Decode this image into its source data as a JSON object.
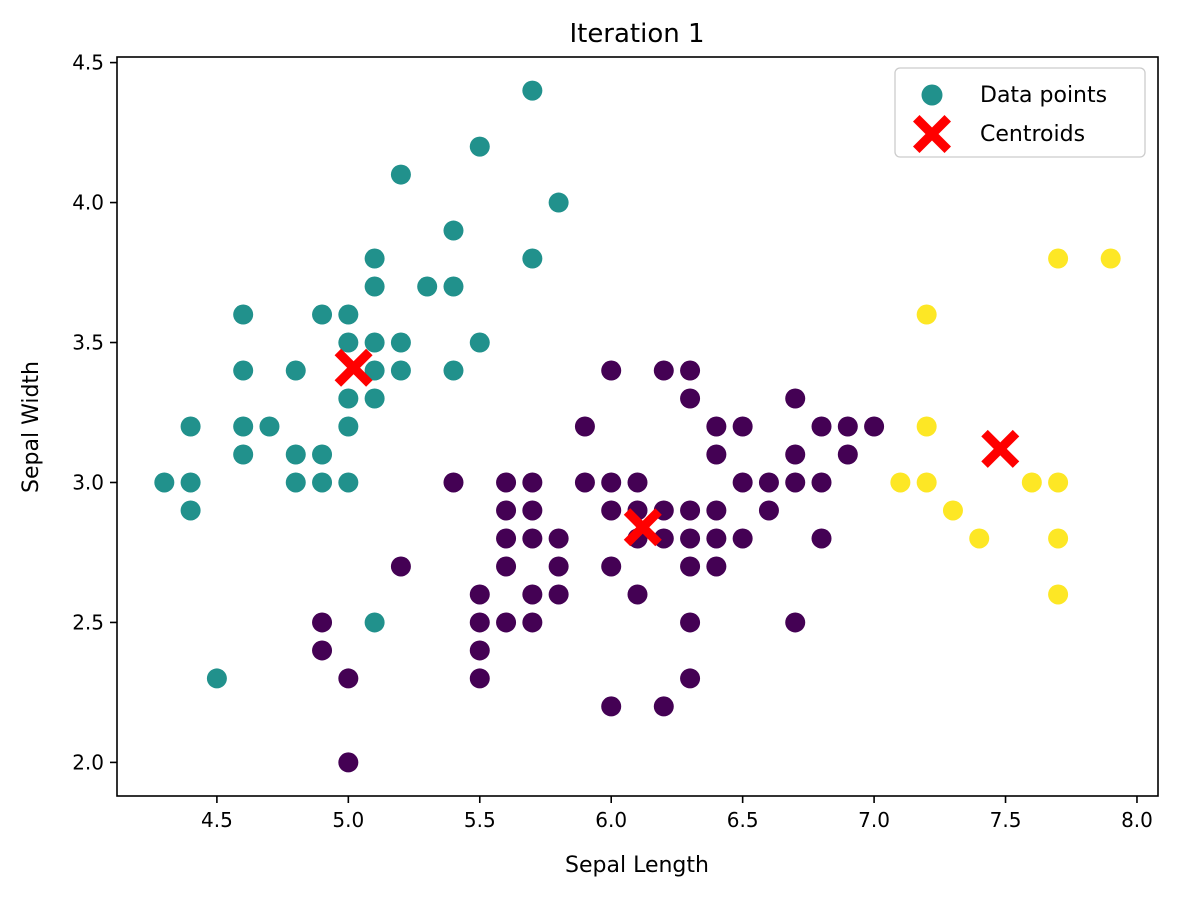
{
  "chart_data": {
    "type": "scatter",
    "title": "Iteration 1",
    "xlabel": "Sepal Length",
    "ylabel": "Sepal Width",
    "xlim": [
      4.12,
      8.08
    ],
    "ylim": [
      1.88,
      4.52
    ],
    "xticks": [
      "4.5",
      "5.0",
      "5.5",
      "6.0",
      "6.5",
      "7.0",
      "7.5",
      "8.0"
    ],
    "yticks": [
      "2.0",
      "2.5",
      "3.0",
      "3.5",
      "4.0",
      "4.5"
    ],
    "grid": false,
    "legend_position": "top-right",
    "cluster_colors": [
      "#440154",
      "#21918c",
      "#fde725"
    ],
    "series": [
      {
        "name": "Data points",
        "marker": "circle",
        "legend_color": "#21918c",
        "points": [
          [
            5.7,
            4.4,
            1
          ],
          [
            5.5,
            4.2,
            1
          ],
          [
            5.2,
            4.1,
            1
          ],
          [
            5.8,
            4.0,
            1
          ],
          [
            5.4,
            3.9,
            1
          ],
          [
            5.1,
            3.8,
            1
          ],
          [
            5.7,
            3.8,
            1
          ],
          [
            5.1,
            3.7,
            1
          ],
          [
            5.3,
            3.7,
            1
          ],
          [
            5.4,
            3.7,
            1
          ],
          [
            4.6,
            3.6,
            1
          ],
          [
            4.9,
            3.6,
            1
          ],
          [
            5.0,
            3.6,
            1
          ],
          [
            5.0,
            3.5,
            1
          ],
          [
            5.1,
            3.5,
            1
          ],
          [
            5.2,
            3.5,
            1
          ],
          [
            5.5,
            3.5,
            1
          ],
          [
            4.6,
            3.4,
            1
          ],
          [
            4.8,
            3.4,
            1
          ],
          [
            5.1,
            3.4,
            1
          ],
          [
            5.2,
            3.4,
            1
          ],
          [
            5.4,
            3.4,
            1
          ],
          [
            5.0,
            3.3,
            1
          ],
          [
            5.1,
            3.3,
            1
          ],
          [
            4.4,
            3.2,
            1
          ],
          [
            4.6,
            3.2,
            1
          ],
          [
            4.7,
            3.2,
            1
          ],
          [
            5.0,
            3.2,
            1
          ],
          [
            4.6,
            3.1,
            1
          ],
          [
            4.8,
            3.1,
            1
          ],
          [
            4.9,
            3.1,
            1
          ],
          [
            4.3,
            3.0,
            1
          ],
          [
            4.4,
            3.0,
            1
          ],
          [
            4.8,
            3.0,
            1
          ],
          [
            4.9,
            3.0,
            1
          ],
          [
            5.0,
            3.0,
            1
          ],
          [
            4.4,
            2.9,
            1
          ],
          [
            5.1,
            2.5,
            1
          ],
          [
            4.5,
            2.3,
            1
          ],
          [
            6.0,
            3.4,
            0
          ],
          [
            6.2,
            3.4,
            0
          ],
          [
            6.3,
            3.4,
            0
          ],
          [
            6.3,
            3.3,
            0
          ],
          [
            6.7,
            3.3,
            0
          ],
          [
            5.9,
            3.2,
            0
          ],
          [
            6.4,
            3.2,
            0
          ],
          [
            6.5,
            3.2,
            0
          ],
          [
            6.8,
            3.2,
            0
          ],
          [
            6.9,
            3.2,
            0
          ],
          [
            7.0,
            3.2,
            0
          ],
          [
            6.4,
            3.1,
            0
          ],
          [
            6.7,
            3.1,
            0
          ],
          [
            6.9,
            3.1,
            0
          ],
          [
            5.4,
            3.0,
            0
          ],
          [
            5.6,
            3.0,
            0
          ],
          [
            5.7,
            3.0,
            0
          ],
          [
            5.9,
            3.0,
            0
          ],
          [
            6.0,
            3.0,
            0
          ],
          [
            6.1,
            3.0,
            0
          ],
          [
            6.5,
            3.0,
            0
          ],
          [
            6.6,
            3.0,
            0
          ],
          [
            6.7,
            3.0,
            0
          ],
          [
            6.8,
            3.0,
            0
          ],
          [
            5.6,
            2.9,
            0
          ],
          [
            5.7,
            2.9,
            0
          ],
          [
            6.0,
            2.9,
            0
          ],
          [
            6.1,
            2.9,
            0
          ],
          [
            6.2,
            2.9,
            0
          ],
          [
            6.3,
            2.9,
            0
          ],
          [
            6.4,
            2.9,
            0
          ],
          [
            6.6,
            2.9,
            0
          ],
          [
            5.6,
            2.8,
            0
          ],
          [
            5.7,
            2.8,
            0
          ],
          [
            5.8,
            2.8,
            0
          ],
          [
            6.1,
            2.8,
            0
          ],
          [
            6.2,
            2.8,
            0
          ],
          [
            6.3,
            2.8,
            0
          ],
          [
            6.4,
            2.8,
            0
          ],
          [
            6.5,
            2.8,
            0
          ],
          [
            6.8,
            2.8,
            0
          ],
          [
            5.2,
            2.7,
            0
          ],
          [
            5.6,
            2.7,
            0
          ],
          [
            5.8,
            2.7,
            0
          ],
          [
            6.0,
            2.7,
            0
          ],
          [
            6.3,
            2.7,
            0
          ],
          [
            6.4,
            2.7,
            0
          ],
          [
            5.5,
            2.6,
            0
          ],
          [
            5.7,
            2.6,
            0
          ],
          [
            5.8,
            2.6,
            0
          ],
          [
            6.1,
            2.6,
            0
          ],
          [
            4.9,
            2.5,
            0
          ],
          [
            5.5,
            2.5,
            0
          ],
          [
            5.6,
            2.5,
            0
          ],
          [
            5.7,
            2.5,
            0
          ],
          [
            6.3,
            2.5,
            0
          ],
          [
            6.7,
            2.5,
            0
          ],
          [
            4.9,
            2.4,
            0
          ],
          [
            5.5,
            2.4,
            0
          ],
          [
            5.0,
            2.3,
            0
          ],
          [
            5.5,
            2.3,
            0
          ],
          [
            6.3,
            2.3,
            0
          ],
          [
            6.0,
            2.2,
            0
          ],
          [
            6.2,
            2.2,
            0
          ],
          [
            5.0,
            2.0,
            0
          ],
          [
            7.7,
            3.8,
            2
          ],
          [
            7.9,
            3.8,
            2
          ],
          [
            7.2,
            3.6,
            2
          ],
          [
            7.2,
            3.2,
            2
          ],
          [
            7.1,
            3.0,
            2
          ],
          [
            7.2,
            3.0,
            2
          ],
          [
            7.6,
            3.0,
            2
          ],
          [
            7.7,
            3.0,
            2
          ],
          [
            7.3,
            2.9,
            2
          ],
          [
            7.4,
            2.8,
            2
          ],
          [
            7.7,
            2.8,
            2
          ],
          [
            7.7,
            2.6,
            2
          ]
        ]
      },
      {
        "name": "Centroids",
        "marker": "x",
        "color": "#ff0000",
        "points": [
          [
            5.02,
            3.41
          ],
          [
            6.12,
            2.84
          ],
          [
            7.48,
            3.12
          ]
        ]
      }
    ]
  }
}
